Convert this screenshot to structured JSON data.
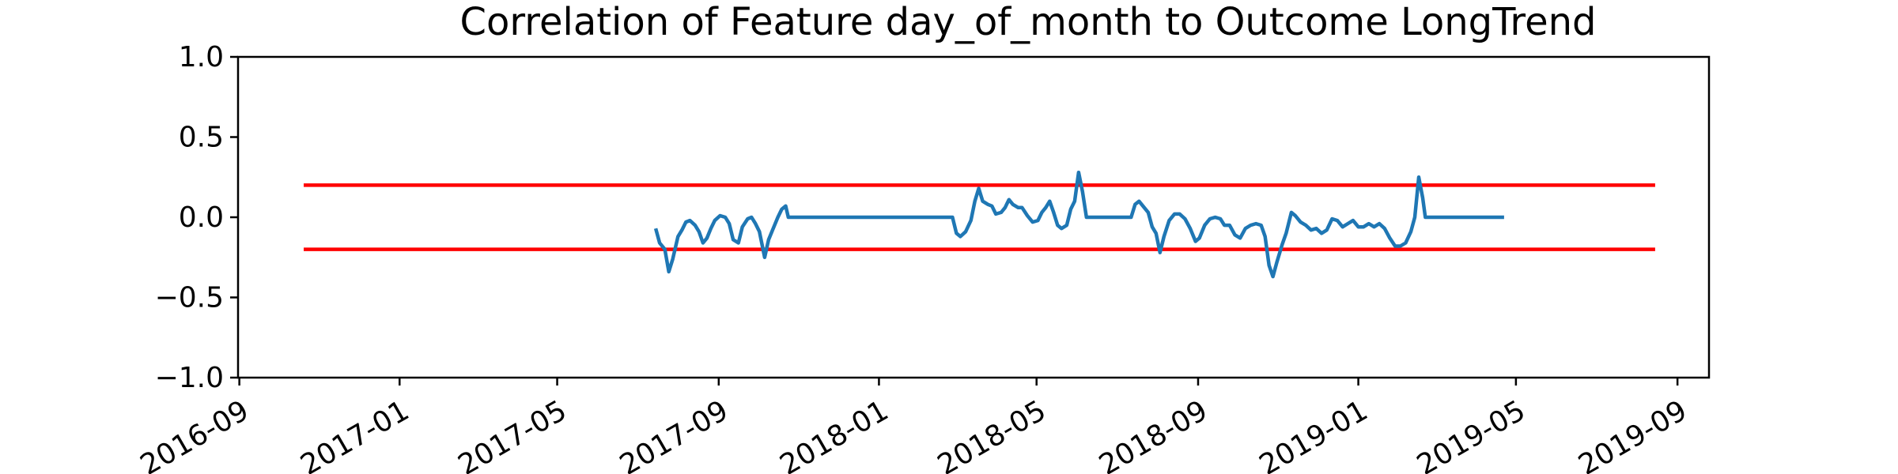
{
  "chart_data": {
    "type": "line",
    "title": "Correlation of Feature day_of_month to Outcome LongTrend",
    "xlabel": "",
    "ylabel": "",
    "ylim": [
      -1.0,
      1.0
    ],
    "xlim": [
      "2016-08-31",
      "2019-09-25"
    ],
    "y_ticks": [
      {
        "value": 1.0,
        "label": "1.0"
      },
      {
        "value": 0.5,
        "label": "0.5"
      },
      {
        "value": 0.0,
        "label": "0.0"
      },
      {
        "value": -0.5,
        "label": "−0.5"
      },
      {
        "value": -1.0,
        "label": "−1.0"
      }
    ],
    "x_ticks": [
      {
        "date": "2016-09-01",
        "label": "2016-09"
      },
      {
        "date": "2017-01-01",
        "label": "2017-01"
      },
      {
        "date": "2017-05-01",
        "label": "2017-05"
      },
      {
        "date": "2017-09-01",
        "label": "2017-09"
      },
      {
        "date": "2018-01-01",
        "label": "2018-01"
      },
      {
        "date": "2018-05-01",
        "label": "2018-05"
      },
      {
        "date": "2018-09-01",
        "label": "2018-09"
      },
      {
        "date": "2019-01-01",
        "label": "2019-01"
      },
      {
        "date": "2019-05-01",
        "label": "2019-05"
      },
      {
        "date": "2019-09-01",
        "label": "2019-09"
      }
    ],
    "grid": false,
    "colors": {
      "series": "#1f77b4",
      "threshold": "#ff0000",
      "axes": "#000000",
      "background": "#ffffff"
    },
    "threshold_lines": [
      {
        "y": 0.2,
        "x_start": "2016-10-20",
        "x_end": "2019-08-15"
      },
      {
        "y": -0.2,
        "x_start": "2016-10-20",
        "x_end": "2019-08-15"
      }
    ],
    "series": [
      {
        "points": [
          [
            "2017-07-15",
            -0.07
          ],
          [
            "2017-07-18",
            -0.16
          ],
          [
            "2017-07-22",
            -0.2
          ],
          [
            "2017-07-25",
            -0.34
          ],
          [
            "2017-07-28",
            -0.26
          ],
          [
            "2017-08-01",
            -0.12
          ],
          [
            "2017-08-04",
            -0.08
          ],
          [
            "2017-08-07",
            -0.03
          ],
          [
            "2017-08-10",
            -0.02
          ],
          [
            "2017-08-14",
            -0.05
          ],
          [
            "2017-08-17",
            -0.09
          ],
          [
            "2017-08-20",
            -0.16
          ],
          [
            "2017-08-23",
            -0.13
          ],
          [
            "2017-08-26",
            -0.07
          ],
          [
            "2017-08-29",
            -0.02
          ],
          [
            "2017-09-02",
            0.01
          ],
          [
            "2017-09-06",
            0.0
          ],
          [
            "2017-09-09",
            -0.04
          ],
          [
            "2017-09-12",
            -0.14
          ],
          [
            "2017-09-16",
            -0.16
          ],
          [
            "2017-09-19",
            -0.06
          ],
          [
            "2017-09-23",
            -0.01
          ],
          [
            "2017-09-26",
            0.0
          ],
          [
            "2017-09-29",
            -0.04
          ],
          [
            "2017-10-02",
            -0.09
          ],
          [
            "2017-10-06",
            -0.25
          ],
          [
            "2017-10-09",
            -0.14
          ],
          [
            "2017-10-12",
            -0.08
          ],
          [
            "2017-10-16",
            0.0
          ],
          [
            "2017-10-19",
            0.05
          ],
          [
            "2017-10-22",
            0.07
          ],
          [
            "2017-10-24",
            0.0
          ],
          [
            "2018-02-26",
            0.0
          ],
          [
            "2018-03-01",
            -0.1
          ],
          [
            "2018-03-04",
            -0.12
          ],
          [
            "2018-03-08",
            -0.09
          ],
          [
            "2018-03-12",
            -0.02
          ],
          [
            "2018-03-15",
            0.1
          ],
          [
            "2018-03-18",
            0.18
          ],
          [
            "2018-03-21",
            0.1
          ],
          [
            "2018-03-25",
            0.08
          ],
          [
            "2018-03-28",
            0.07
          ],
          [
            "2018-03-31",
            0.02
          ],
          [
            "2018-04-04",
            0.03
          ],
          [
            "2018-04-07",
            0.06
          ],
          [
            "2018-04-10",
            0.11
          ],
          [
            "2018-04-13",
            0.08
          ],
          [
            "2018-04-17",
            0.06
          ],
          [
            "2018-04-20",
            0.06
          ],
          [
            "2018-04-24",
            0.01
          ],
          [
            "2018-04-28",
            -0.03
          ],
          [
            "2018-05-02",
            -0.02
          ],
          [
            "2018-05-05",
            0.03
          ],
          [
            "2018-05-08",
            0.06
          ],
          [
            "2018-05-11",
            0.1
          ],
          [
            "2018-05-14",
            0.03
          ],
          [
            "2018-05-17",
            -0.05
          ],
          [
            "2018-05-20",
            -0.07
          ],
          [
            "2018-05-24",
            -0.05
          ],
          [
            "2018-05-27",
            0.05
          ],
          [
            "2018-05-30",
            0.1
          ],
          [
            "2018-06-02",
            0.28
          ],
          [
            "2018-06-05",
            0.16
          ],
          [
            "2018-06-08",
            0.0
          ],
          [
            "2018-07-12",
            0.0
          ],
          [
            "2018-07-15",
            0.08
          ],
          [
            "2018-07-18",
            0.1
          ],
          [
            "2018-07-22",
            0.06
          ],
          [
            "2018-07-25",
            0.03
          ],
          [
            "2018-07-28",
            -0.06
          ],
          [
            "2018-07-31",
            -0.1
          ],
          [
            "2018-08-03",
            -0.22
          ],
          [
            "2018-08-06",
            -0.12
          ],
          [
            "2018-08-10",
            -0.02
          ],
          [
            "2018-08-14",
            0.02
          ],
          [
            "2018-08-18",
            0.02
          ],
          [
            "2018-08-22",
            -0.01
          ],
          [
            "2018-08-26",
            -0.07
          ],
          [
            "2018-08-30",
            -0.15
          ],
          [
            "2018-09-02",
            -0.13
          ],
          [
            "2018-09-06",
            -0.05
          ],
          [
            "2018-09-10",
            -0.01
          ],
          [
            "2018-09-14",
            0.0
          ],
          [
            "2018-09-18",
            -0.01
          ],
          [
            "2018-09-21",
            -0.05
          ],
          [
            "2018-09-25",
            -0.05
          ],
          [
            "2018-09-29",
            -0.11
          ],
          [
            "2018-10-03",
            -0.13
          ],
          [
            "2018-10-07",
            -0.07
          ],
          [
            "2018-10-11",
            -0.05
          ],
          [
            "2018-10-15",
            -0.04
          ],
          [
            "2018-10-19",
            -0.05
          ],
          [
            "2018-10-22",
            -0.12
          ],
          [
            "2018-10-25",
            -0.3
          ],
          [
            "2018-10-28",
            -0.37
          ],
          [
            "2018-10-31",
            -0.28
          ],
          [
            "2018-11-04",
            -0.17
          ],
          [
            "2018-11-07",
            -0.1
          ],
          [
            "2018-11-11",
            0.03
          ],
          [
            "2018-11-14",
            0.01
          ],
          [
            "2018-11-18",
            -0.03
          ],
          [
            "2018-11-22",
            -0.05
          ],
          [
            "2018-11-26",
            -0.08
          ],
          [
            "2018-11-30",
            -0.07
          ],
          [
            "2018-12-04",
            -0.1
          ],
          [
            "2018-12-08",
            -0.08
          ],
          [
            "2018-12-12",
            -0.01
          ],
          [
            "2018-12-16",
            -0.02
          ],
          [
            "2018-12-20",
            -0.06
          ],
          [
            "2018-12-24",
            -0.04
          ],
          [
            "2018-12-28",
            -0.02
          ],
          [
            "2019-01-01",
            -0.06
          ],
          [
            "2019-01-05",
            -0.06
          ],
          [
            "2019-01-09",
            -0.04
          ],
          [
            "2019-01-13",
            -0.06
          ],
          [
            "2019-01-17",
            -0.04
          ],
          [
            "2019-01-21",
            -0.07
          ],
          [
            "2019-01-25",
            -0.13
          ],
          [
            "2019-01-29",
            -0.18
          ],
          [
            "2019-02-02",
            -0.18
          ],
          [
            "2019-02-06",
            -0.16
          ],
          [
            "2019-02-10",
            -0.09
          ],
          [
            "2019-02-13",
            0.0
          ],
          [
            "2019-02-16",
            0.25
          ],
          [
            "2019-02-19",
            0.12
          ],
          [
            "2019-02-21",
            0.0
          ],
          [
            "2019-04-22",
            0.0
          ]
        ]
      }
    ]
  }
}
